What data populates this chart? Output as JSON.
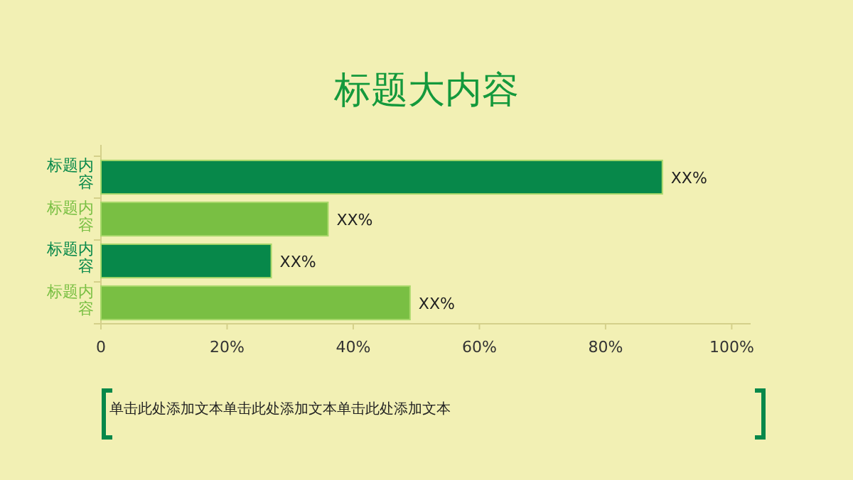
{
  "chart_data": {
    "type": "bar",
    "orientation": "horizontal",
    "title": "标题大内容",
    "categories": [
      "标题内容",
      "标题内容",
      "标题内容",
      "标题内容"
    ],
    "values": [
      89,
      36,
      27,
      49
    ],
    "colors": [
      "#07884a",
      "#79bf43",
      "#07884a",
      "#79bf43"
    ],
    "value_labels": [
      "XX%",
      "XX%",
      "XX%",
      "XX%"
    ],
    "xlim": [
      0,
      103
    ],
    "xticks": [
      0,
      {
        "value": 20,
        "label": "20%"
      },
      {
        "value": 40,
        "label": "40%"
      },
      {
        "value": 60,
        "label": "60%"
      },
      {
        "value": 80,
        "label": "80%"
      },
      {
        "value": 100,
        "label": "100%"
      }
    ],
    "annotations": [
      "单击此处添加文本单击此处添加文本单击此处添加文本"
    ]
  }
}
